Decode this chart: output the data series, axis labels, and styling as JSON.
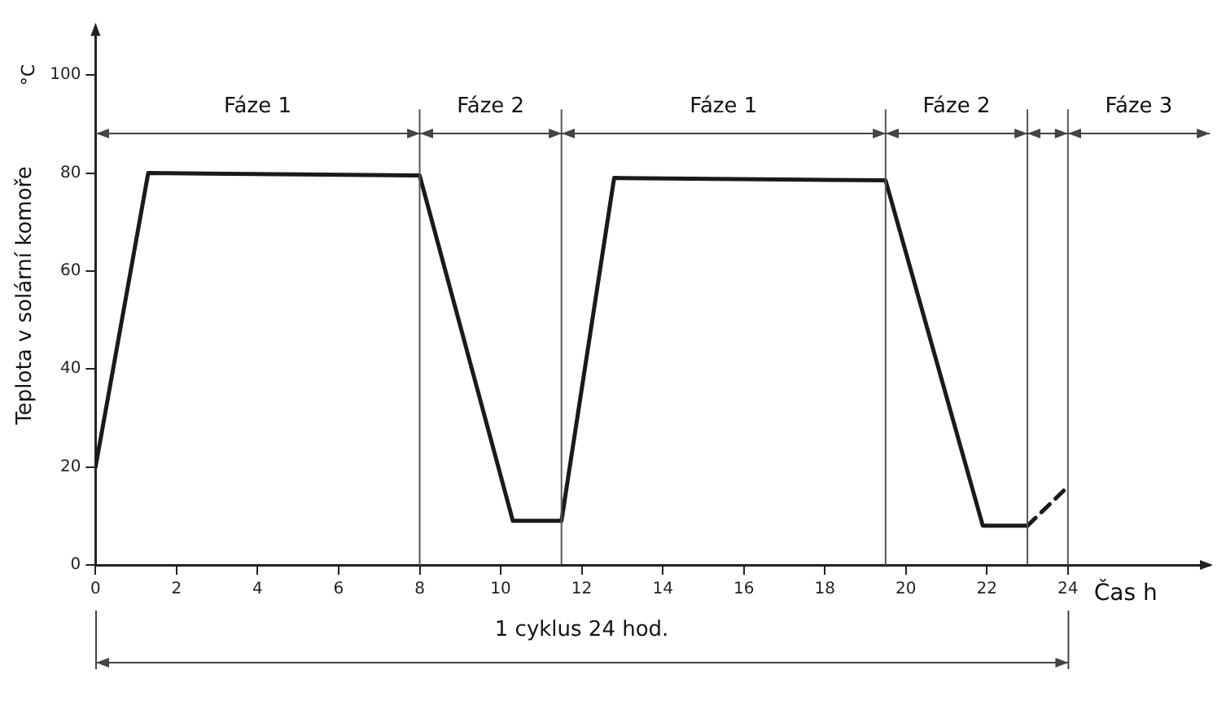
{
  "chart_data": {
    "type": "line",
    "ylabel": "Teplota v solární komoře",
    "xlabel": "Čas h",
    "series": [
      {
        "color": "#1a1a1a",
        "line_style": "solid",
        "x": [
          0,
          1.3,
          8,
          10.3,
          11.5,
          12.8,
          19.5,
          21.9,
          23
        ],
        "values": [
          20,
          80,
          79.5,
          9,
          9,
          79,
          78.5,
          8,
          8
        ]
      },
      {
        "color": "#1a1a1a",
        "line_style": "dashed",
        "x": [
          23,
          24
        ],
        "values": [
          8,
          16
        ]
      }
    ],
    "xlim": [
      0,
      27.5
    ],
    "xticks": [
      0,
      2,
      4,
      6,
      8,
      10,
      12,
      14,
      16,
      18,
      20,
      22,
      24
    ],
    "ylim": [
      0,
      110
    ],
    "yticks": [
      0,
      20,
      40,
      60,
      80,
      100
    ],
    "ref_lines": [
      {
        "axis": "x",
        "value": 8,
        "label": null
      },
      {
        "axis": "x",
        "value": 11.5,
        "label": null
      },
      {
        "axis": "x",
        "value": 19.5,
        "label": null
      },
      {
        "axis": "x",
        "value": 23,
        "label": null
      },
      {
        "axis": "x",
        "value": 24,
        "label": null
      }
    ],
    "annotations": [
      "°C",
      "1 cyklus 24 hod.",
      "Fáze 1",
      "Fáze 2",
      "Fáze 1",
      "Fáze 2",
      "Fáze 3"
    ],
    "grid": false,
    "legend": false,
    "marker": "none"
  }
}
